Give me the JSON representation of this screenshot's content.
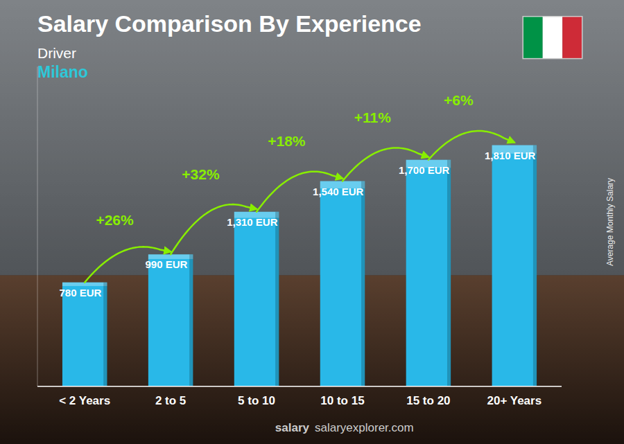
{
  "chart_data": {
    "type": "bar",
    "title": "Salary Comparison By Experience",
    "subtitle": [
      "Driver",
      "Milano"
    ],
    "categories": [
      "< 2 Years",
      "2 to 5",
      "5 to 10",
      "10 to 15",
      "15 to 20",
      "20+ Years"
    ],
    "values": [
      780,
      990,
      1310,
      1540,
      1700,
      1810
    ],
    "value_labels": [
      "780 EUR",
      "990 EUR",
      "1,310 EUR",
      "1,540 EUR",
      "1,700 EUR",
      "1,810 EUR"
    ],
    "data_labels": true,
    "color": "#29b8e8",
    "ylabel": "Average Monthly Salary",
    "ylim": [
      0,
      2400
    ],
    "tick_labels": "x",
    "grid": false,
    "annotations": [
      "+26%",
      "+32%",
      "+18%",
      "+11%",
      "+6%"
    ],
    "footer": [
      "salary",
      "salaryexplorer.com"
    ]
  }
}
